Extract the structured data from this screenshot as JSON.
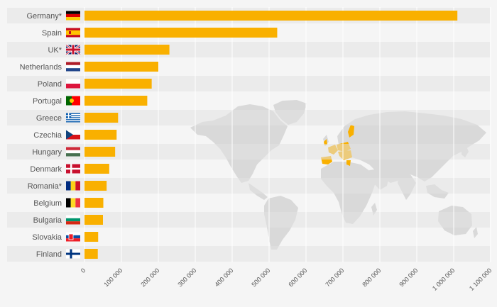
{
  "chart_data": {
    "type": "bar",
    "orientation": "horizontal",
    "categories": [
      "Germany*",
      "Spain",
      "UK*",
      "Netherlands",
      "Poland",
      "Portugal",
      "Greece",
      "Czechia",
      "Hungary",
      "Denmark",
      "Romania*",
      "Belgium",
      "Bulgaria",
      "Slovakia",
      "Finland"
    ],
    "values": [
      1010000,
      522000,
      230000,
      200000,
      182000,
      170000,
      91000,
      87000,
      83000,
      67000,
      60000,
      51000,
      50000,
      37000,
      36000
    ],
    "xlim": [
      0,
      1100000
    ],
    "xticks": [
      "0",
      "100 000",
      "200 000",
      "300 000",
      "400 000",
      "500 000",
      "600 000",
      "700 000",
      "800 000",
      "900 000",
      "1 000 000",
      "1 100 000"
    ],
    "bar_color": "#f9b000",
    "grid": true,
    "background_map": true,
    "map_colors": {
      "land": "#d9d9d9",
      "highlight": "#f9b000"
    },
    "flags": [
      "germany-flag",
      "spain-flag",
      "uk-flag",
      "netherlands-flag",
      "poland-flag",
      "portugal-flag",
      "greece-flag",
      "czechia-flag",
      "hungary-flag",
      "denmark-flag",
      "romania-flag",
      "belgium-flag",
      "bulgaria-flag",
      "slovakia-flag",
      "finland-flag"
    ]
  }
}
